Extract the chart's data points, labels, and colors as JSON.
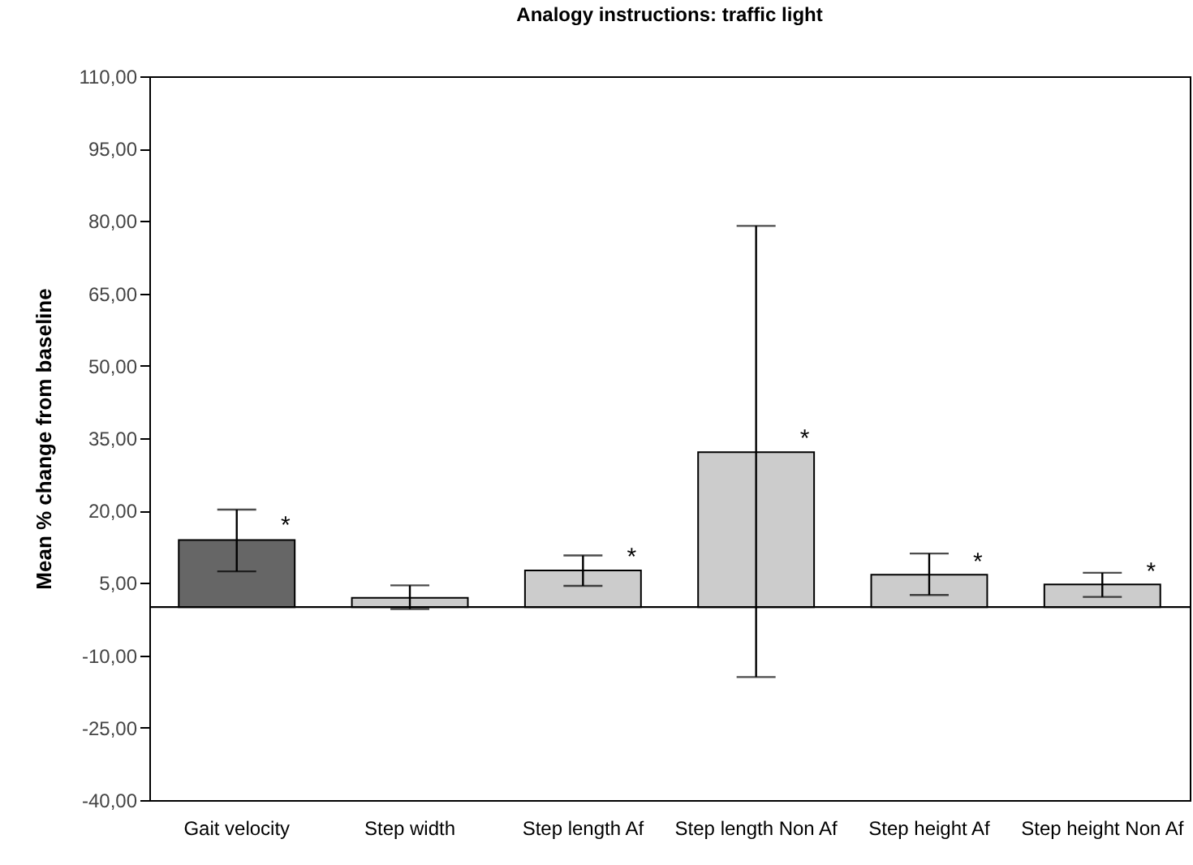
{
  "chart_data": {
    "type": "bar",
    "title": "Analogy instructions: traffic light",
    "ylabel": "Mean % change from baseline",
    "categories": [
      "Gait velocity",
      "Step width",
      "Step length Af",
      "Step length\nNon Af",
      "Step height Af",
      "Step height\nNon Af"
    ],
    "values": [
      13.9,
      1.9,
      7.6,
      32.1,
      6.7,
      4.7
    ],
    "colors": [
      "#666666",
      "#cccccc",
      "#cccccc",
      "#cccccc",
      "#cccccc",
      "#cccccc"
    ],
    "errors": [
      [
        7.4,
        20.2
      ],
      [
        -0.4,
        4.5
      ],
      [
        4.4,
        10.7
      ],
      [
        -14.5,
        79.0
      ],
      [
        2.5,
        11.1
      ],
      [
        2.1,
        7.1
      ]
    ],
    "ylim": [
      -40,
      110
    ],
    "yticks": [
      {
        "value": -40,
        "label": "-40,00"
      },
      {
        "value": -25,
        "label": "-25,00"
      },
      {
        "value": -10,
        "label": "-10,00"
      },
      {
        "value": 5,
        "label": "5,00"
      },
      {
        "value": 20,
        "label": "20,00"
      },
      {
        "value": 35,
        "label": "35,00"
      },
      {
        "value": 50,
        "label": "50,00"
      },
      {
        "value": 65,
        "label": "65,00"
      },
      {
        "value": 80,
        "label": "80,00"
      },
      {
        "value": 95,
        "label": "95,00"
      },
      {
        "value": 110,
        "label": "110,00"
      }
    ],
    "ref_lines": [
      {
        "axis": "y",
        "value": 0,
        "color": "#000000"
      }
    ],
    "annotations": [
      {
        "text": "*",
        "x": "Gait velocity",
        "y": 17
      },
      {
        "text": "*",
        "x": "Step length Af",
        "y": 10.5
      },
      {
        "text": "*",
        "x": "Step length\nNon Af",
        "y": 35
      },
      {
        "text": "*",
        "x": "Step height Af",
        "y": 9.5
      },
      {
        "text": "*",
        "x": "Step height\nNon Af",
        "y": 7.5
      }
    ],
    "grid": false
  }
}
